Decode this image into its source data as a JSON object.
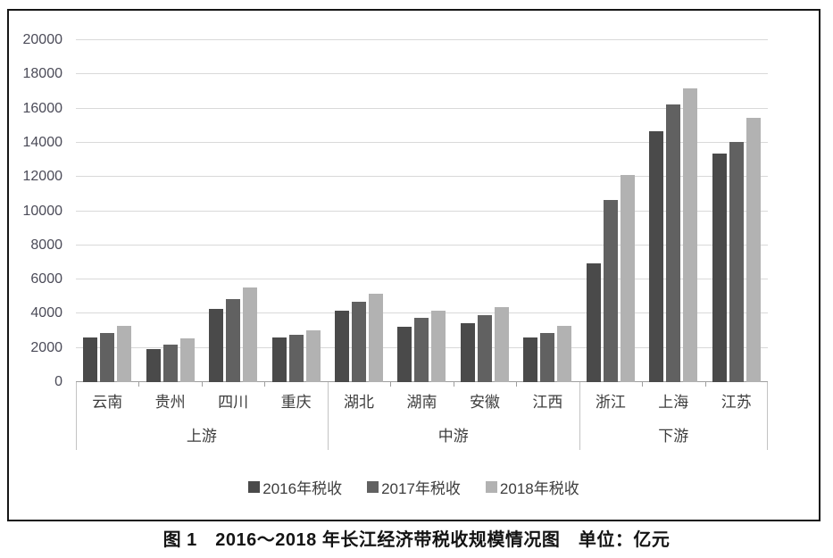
{
  "caption": "图 1　2016～2018 年长江经济带税收规模情况图　单位：亿元",
  "colors": {
    "series_2016": "#4a4a4a",
    "series_2017": "#616161",
    "series_2018": "#b2b2b2",
    "gridline": "#d9d9d9",
    "axis_line": "#9e9e9e",
    "text": "#3d3d3d"
  },
  "chart_data": {
    "type": "bar",
    "title": "图 1　2016～2018 年长江经济带税收规模情况图　单位：亿元",
    "xlabel": "",
    "ylabel": "",
    "ylim": [
      0,
      20000
    ],
    "grid": true,
    "legend_position": "bottom",
    "categories": [
      "云南",
      "贵州",
      "四川",
      "重庆",
      "湖北",
      "湖南",
      "安徽",
      "江西",
      "浙江",
      "上海",
      "江苏"
    ],
    "groups": [
      {
        "label": "上游",
        "span": 4
      },
      {
        "label": "中游",
        "span": 4
      },
      {
        "label": "下游",
        "span": 3
      }
    ],
    "y_axis": {
      "min": 0,
      "max": 20000,
      "step": 2000,
      "ticks": [
        0,
        2000,
        4000,
        6000,
        8000,
        10000,
        12000,
        14000,
        16000,
        18000,
        20000
      ]
    },
    "series": [
      {
        "name": "2016年税收",
        "color": "#4a4a4a",
        "values": [
          2600,
          1950,
          4300,
          2600,
          4200,
          3250,
          3450,
          2600,
          6950,
          14700,
          13350
        ]
      },
      {
        "name": "2017年税收",
        "color": "#616161",
        "values": [
          2850,
          2200,
          4850,
          2750,
          4700,
          3750,
          3900,
          2850,
          10650,
          16250,
          14050
        ]
      },
      {
        "name": "2018年税收",
        "color": "#b2b2b2",
        "values": [
          3300,
          2550,
          5550,
          3050,
          5150,
          4200,
          4400,
          3300,
          12100,
          17200,
          15450
        ]
      }
    ]
  }
}
